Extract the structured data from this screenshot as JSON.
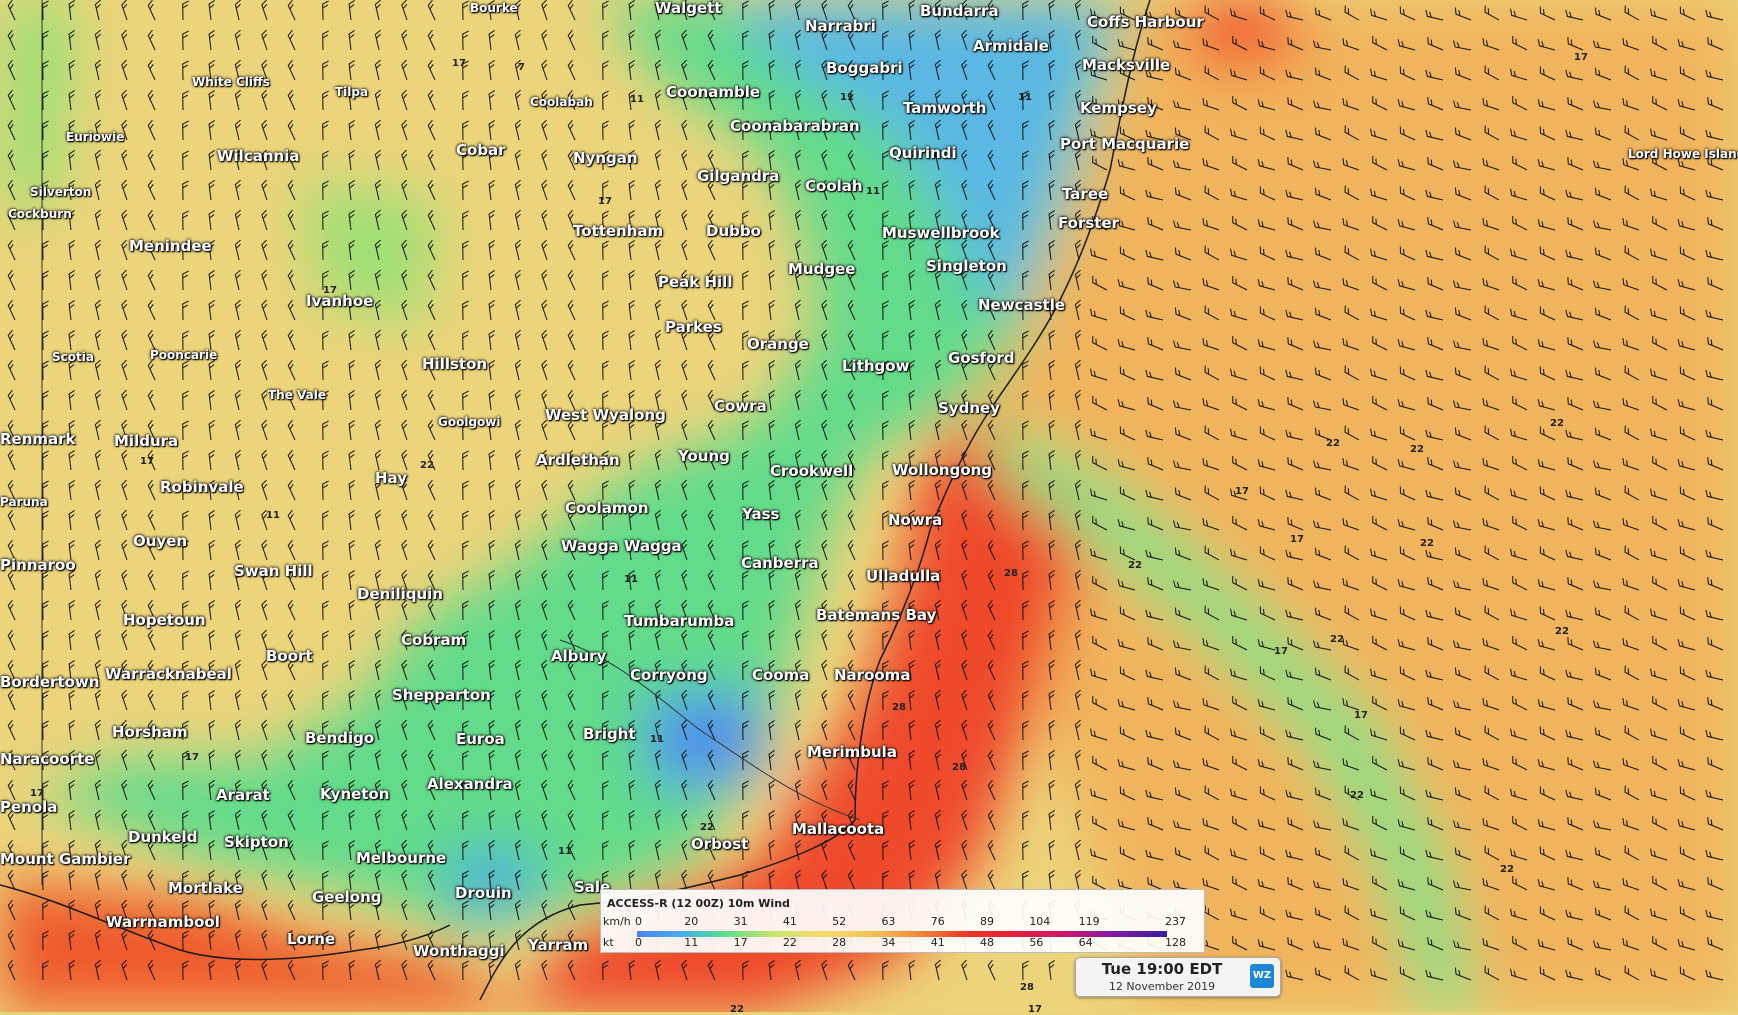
{
  "map": {
    "cities": [
      {
        "name": "Bourke",
        "cls": "small"
      },
      {
        "name": "Walgett",
        "cls": ""
      },
      {
        "name": "Bundarra",
        "cls": ""
      },
      {
        "name": "Narrabri",
        "cls": ""
      },
      {
        "name": "Coffs Harbour",
        "cls": ""
      },
      {
        "name": "Armidale",
        "cls": ""
      },
      {
        "name": "Boggabri",
        "cls": ""
      },
      {
        "name": "Macksville",
        "cls": ""
      },
      {
        "name": "White Cliffs",
        "cls": "small"
      },
      {
        "name": "Tilpa",
        "cls": "small"
      },
      {
        "name": "Coolabah",
        "cls": "small"
      },
      {
        "name": "Coonamble",
        "cls": ""
      },
      {
        "name": "Tamworth",
        "cls": ""
      },
      {
        "name": "Kempsey",
        "cls": ""
      },
      {
        "name": "Euriowie",
        "cls": "small"
      },
      {
        "name": "Coonabarabran",
        "cls": ""
      },
      {
        "name": "Port Macquarie",
        "cls": ""
      },
      {
        "name": "Lord Howe Island",
        "cls": "small"
      },
      {
        "name": "Cobar",
        "cls": ""
      },
      {
        "name": "Wilcannia",
        "cls": ""
      },
      {
        "name": "Nyngan",
        "cls": ""
      },
      {
        "name": "Quirindi",
        "cls": ""
      },
      {
        "name": "Gilgandra",
        "cls": ""
      },
      {
        "name": "Coolah",
        "cls": ""
      },
      {
        "name": "Silverton",
        "cls": "small"
      },
      {
        "name": "Taree",
        "cls": ""
      },
      {
        "name": "Cockburn",
        "cls": "small"
      },
      {
        "name": "Forster",
        "cls": ""
      },
      {
        "name": "Tottenham",
        "cls": ""
      },
      {
        "name": "Dubbo",
        "cls": ""
      },
      {
        "name": "Muswellbrook",
        "cls": ""
      },
      {
        "name": "Menindee",
        "cls": ""
      },
      {
        "name": "Singleton",
        "cls": ""
      },
      {
        "name": "Mudgee",
        "cls": ""
      },
      {
        "name": "Peak Hill",
        "cls": ""
      },
      {
        "name": "Ivanhoe",
        "cls": ""
      },
      {
        "name": "Newcastle",
        "cls": ""
      },
      {
        "name": "Parkes",
        "cls": ""
      },
      {
        "name": "Orange",
        "cls": ""
      },
      {
        "name": "Scotia",
        "cls": "small"
      },
      {
        "name": "Pooncarie",
        "cls": "small"
      },
      {
        "name": "Gosford",
        "cls": ""
      },
      {
        "name": "Hillston",
        "cls": ""
      },
      {
        "name": "Lithgow",
        "cls": ""
      },
      {
        "name": "The Vale",
        "cls": "small"
      },
      {
        "name": "Cowra",
        "cls": ""
      },
      {
        "name": "Sydney",
        "cls": ""
      },
      {
        "name": "West Wyalong",
        "cls": ""
      },
      {
        "name": "Goolgowi",
        "cls": "small"
      },
      {
        "name": "Renmark",
        "cls": ""
      },
      {
        "name": "Mildura",
        "cls": ""
      },
      {
        "name": "Young",
        "cls": ""
      },
      {
        "name": "Ardlethan",
        "cls": ""
      },
      {
        "name": "Wollongong",
        "cls": ""
      },
      {
        "name": "Crookwell",
        "cls": ""
      },
      {
        "name": "Hay",
        "cls": ""
      },
      {
        "name": "Robinvale",
        "cls": ""
      },
      {
        "name": "Paruna",
        "cls": "small"
      },
      {
        "name": "Coolamon",
        "cls": ""
      },
      {
        "name": "Yass",
        "cls": ""
      },
      {
        "name": "Nowra",
        "cls": ""
      },
      {
        "name": "Ouyen",
        "cls": ""
      },
      {
        "name": "Wagga Wagga",
        "cls": ""
      },
      {
        "name": "Pinnaroo",
        "cls": ""
      },
      {
        "name": "Canberra",
        "cls": ""
      },
      {
        "name": "Swan Hill",
        "cls": ""
      },
      {
        "name": "Ulladulla",
        "cls": ""
      },
      {
        "name": "Deniliquin",
        "cls": ""
      },
      {
        "name": "Batemans Bay",
        "cls": ""
      },
      {
        "name": "Hopetoun",
        "cls": ""
      },
      {
        "name": "Tumbarumba",
        "cls": ""
      },
      {
        "name": "Cobram",
        "cls": ""
      },
      {
        "name": "Albury",
        "cls": ""
      },
      {
        "name": "Boort",
        "cls": ""
      },
      {
        "name": "Bordertown",
        "cls": ""
      },
      {
        "name": "Warracknabeal",
        "cls": ""
      },
      {
        "name": "Corryong",
        "cls": ""
      },
      {
        "name": "Cooma",
        "cls": ""
      },
      {
        "name": "Narooma",
        "cls": ""
      },
      {
        "name": "Shepparton",
        "cls": ""
      },
      {
        "name": "Horsham",
        "cls": ""
      },
      {
        "name": "Bright",
        "cls": ""
      },
      {
        "name": "Bendigo",
        "cls": ""
      },
      {
        "name": "Euroa",
        "cls": ""
      },
      {
        "name": "Merimbula",
        "cls": ""
      },
      {
        "name": "Naracoorte",
        "cls": ""
      },
      {
        "name": "Alexandra",
        "cls": ""
      },
      {
        "name": "Ararat",
        "cls": ""
      },
      {
        "name": "Kyneton",
        "cls": ""
      },
      {
        "name": "Penola",
        "cls": ""
      },
      {
        "name": "Mallacoota",
        "cls": ""
      },
      {
        "name": "Dunkeld",
        "cls": ""
      },
      {
        "name": "Skipton",
        "cls": ""
      },
      {
        "name": "Orbost",
        "cls": ""
      },
      {
        "name": "Mount Gambier",
        "cls": ""
      },
      {
        "name": "Melbourne",
        "cls": ""
      },
      {
        "name": "Mortlake",
        "cls": ""
      },
      {
        "name": "Drouin",
        "cls": ""
      },
      {
        "name": "Sale",
        "cls": ""
      },
      {
        "name": "Geelong",
        "cls": ""
      },
      {
        "name": "Warrnambool",
        "cls": ""
      },
      {
        "name": "Lorne",
        "cls": ""
      },
      {
        "name": "Yarram",
        "cls": ""
      },
      {
        "name": "Wonthaggi",
        "cls": ""
      }
    ],
    "contour_labels": [
      "17",
      "7",
      "11",
      "11",
      "11",
      "11",
      "17",
      "17",
      "22",
      "22",
      "22",
      "22",
      "22",
      "17",
      "17",
      "17",
      "17",
      "28",
      "28",
      "28",
      "22",
      "22",
      "22",
      "22",
      "17",
      "17",
      "11",
      "11",
      "11",
      "22",
      "22",
      "28",
      "17",
      "17",
      "17",
      "11",
      "22"
    ]
  },
  "legend": {
    "title": "ACCESS-R (12 00Z) 10m Wind",
    "unit_kmh": "km/h",
    "unit_kt": "kt",
    "kmh": [
      "0",
      "20",
      "31",
      "41",
      "52",
      "63",
      "76",
      "89",
      "104",
      "119",
      "237"
    ],
    "kt": [
      "0",
      "11",
      "17",
      "22",
      "28",
      "34",
      "41",
      "48",
      "56",
      "64",
      "128"
    ]
  },
  "time": {
    "main": "Tue 19:00 EDT",
    "date": "12 November 2019",
    "logo": "WZ"
  }
}
